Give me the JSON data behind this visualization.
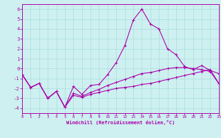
{
  "xlabel": "Windchill (Refroidissement éolien,°C)",
  "xlim": [
    0,
    23
  ],
  "ylim": [
    -4.5,
    6.5
  ],
  "yticks": [
    -4,
    -3,
    -2,
    -1,
    0,
    1,
    2,
    3,
    4,
    5,
    6
  ],
  "xticks": [
    0,
    1,
    2,
    3,
    4,
    5,
    6,
    7,
    8,
    9,
    10,
    11,
    12,
    13,
    14,
    15,
    16,
    17,
    18,
    19,
    20,
    21,
    22,
    23
  ],
  "bg_color": "#cef0f0",
  "line_color": "#aa00aa",
  "grid_color": "#aadddd",
  "curve1_x": [
    0,
    1,
    2,
    3,
    4,
    5,
    6,
    7,
    8,
    9,
    10,
    11,
    12,
    13,
    14,
    15,
    16,
    17,
    18,
    19,
    20,
    21,
    22,
    23
  ],
  "curve1_y": [
    -0.6,
    -1.9,
    -1.5,
    -3.0,
    -2.3,
    -3.9,
    -1.8,
    -2.6,
    -1.7,
    -1.6,
    -0.6,
    0.6,
    2.3,
    4.9,
    6.0,
    4.5,
    4.0,
    2.0,
    1.4,
    0.2,
    -0.1,
    0.3,
    -0.2,
    -0.5
  ],
  "curve2_x": [
    0,
    1,
    2,
    3,
    4,
    5,
    6,
    7,
    8,
    9,
    10,
    11,
    12,
    13,
    14,
    15,
    16,
    17,
    18,
    19,
    20,
    21,
    22,
    23
  ],
  "curve2_y": [
    -0.6,
    -1.9,
    -1.5,
    -3.0,
    -2.3,
    -3.9,
    -2.5,
    -2.8,
    -2.4,
    -2.1,
    -1.7,
    -1.4,
    -1.1,
    -0.8,
    -0.5,
    -0.4,
    -0.2,
    0.0,
    0.1,
    0.1,
    0.0,
    -0.1,
    -0.3,
    -1.5
  ],
  "curve3_x": [
    0,
    1,
    2,
    3,
    4,
    5,
    6,
    7,
    8,
    9,
    10,
    11,
    12,
    13,
    14,
    15,
    16,
    17,
    18,
    19,
    20,
    21,
    22,
    23
  ],
  "curve3_y": [
    -0.6,
    -1.9,
    -1.5,
    -3.0,
    -2.3,
    -3.9,
    -2.7,
    -2.9,
    -2.6,
    -2.4,
    -2.2,
    -2.0,
    -1.9,
    -1.8,
    -1.6,
    -1.5,
    -1.3,
    -1.1,
    -0.9,
    -0.7,
    -0.5,
    -0.3,
    -0.1,
    -1.5
  ]
}
